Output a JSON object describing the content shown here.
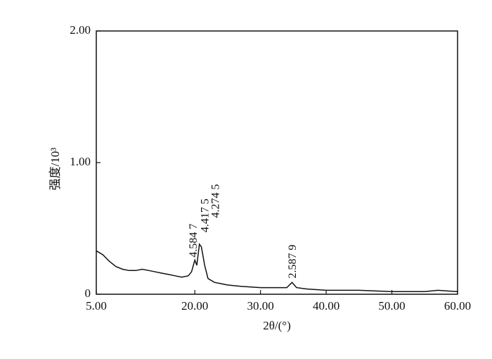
{
  "chart_data": {
    "type": "line",
    "x_label": "2θ/(°)",
    "y_label": "强度/10³",
    "x": [
      5,
      6,
      7,
      8,
      9,
      10,
      11,
      12,
      13,
      14,
      15,
      16,
      17,
      18,
      19,
      19.5,
      20,
      20.3,
      20.7,
      21,
      21.5,
      22,
      23,
      24,
      25,
      27,
      30,
      32,
      34,
      34.8,
      35.5,
      37,
      40,
      45,
      50,
      55,
      57,
      60
    ],
    "values": [
      0.33,
      0.3,
      0.25,
      0.21,
      0.19,
      0.18,
      0.18,
      0.19,
      0.18,
      0.17,
      0.16,
      0.15,
      0.14,
      0.13,
      0.14,
      0.17,
      0.26,
      0.22,
      0.38,
      0.36,
      0.22,
      0.12,
      0.09,
      0.08,
      0.07,
      0.06,
      0.05,
      0.05,
      0.05,
      0.09,
      0.05,
      0.04,
      0.03,
      0.03,
      0.02,
      0.02,
      0.03,
      0.02
    ],
    "color": "#111111",
    "xlim": [
      5,
      60
    ],
    "xticks": [
      {
        "value": 5,
        "label": "5.00"
      },
      {
        "value": 20,
        "label": "20.00"
      },
      {
        "value": 30,
        "label": "30.00"
      },
      {
        "value": 40,
        "label": "40.00"
      },
      {
        "value": 50,
        "label": "50.00"
      },
      {
        "value": 60,
        "label": "60.00"
      }
    ],
    "ylim": [
      0,
      2
    ],
    "yticks": [
      0,
      {
        "value": 1,
        "label": "1.00"
      },
      {
        "value": 2,
        "label": "2.00"
      }
    ],
    "annotations": [
      {
        "text": "4.584 7",
        "x": 19.9,
        "y": 0.28
      },
      {
        "text": "4.417 5",
        "x": 21.7,
        "y": 0.47
      },
      {
        "text": "4.274 5",
        "x": 23.3,
        "y": 0.58
      },
      {
        "text": "2.587 9",
        "x": 35.0,
        "y": 0.12
      }
    ]
  }
}
